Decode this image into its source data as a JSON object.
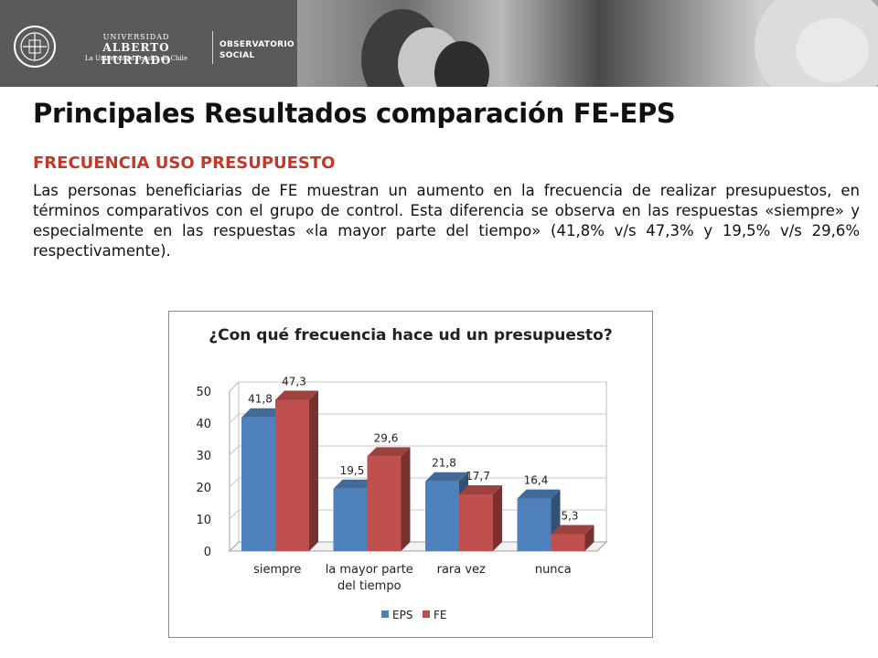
{
  "header": {
    "logo_lines": [
      "UNIVERSIDAD",
      "ALBERTO HURTADO",
      "La Universidad Jesuita de Chile"
    ],
    "partner_lines": [
      "OBSERVATORIO",
      "SOCIAL"
    ]
  },
  "slide": {
    "title": "Principales Resultados comparación FE-EPS",
    "subtitle": "FRECUENCIA USO PRESUPUESTO",
    "body": "Las personas beneficiarias de FE muestran un aumento en la frecuencia de realizar presupuestos, en términos comparativos con el grupo de control. Esta diferencia se observa en las respuestas «siempre» y especialmente en las respuestas «la mayor parte del tiempo» (41,8% v/s 47,3% y 19,5% v/s 29,6% respectivamente)."
  },
  "chart_data": {
    "type": "bar",
    "title": "¿Con qué frecuencia hace ud un presupuesto?",
    "categories": [
      "siempre",
      "la mayor parte del tiempo",
      "rara vez",
      "nunca"
    ],
    "category_label_lines": [
      [
        "siempre"
      ],
      [
        "la mayor parte",
        "del tiempo"
      ],
      [
        "rara vez"
      ],
      [
        "nunca"
      ]
    ],
    "series": [
      {
        "name": "EPS",
        "values": [
          41.8,
          19.5,
          21.8,
          16.4
        ],
        "labels": [
          "41,8",
          "19,5",
          "21,8",
          "16,4"
        ],
        "color": "#4f81bd"
      },
      {
        "name": "FE",
        "values": [
          47.3,
          29.6,
          17.7,
          5.3
        ],
        "labels": [
          "47,3",
          "29,6",
          "17,7",
          "5,3"
        ],
        "color": "#c0504d"
      }
    ],
    "ylim": [
      0,
      50
    ],
    "yticks": [
      0,
      10,
      20,
      30,
      40,
      50
    ],
    "grid": true,
    "legend": "bottom",
    "style": "3d-clustered-column"
  }
}
